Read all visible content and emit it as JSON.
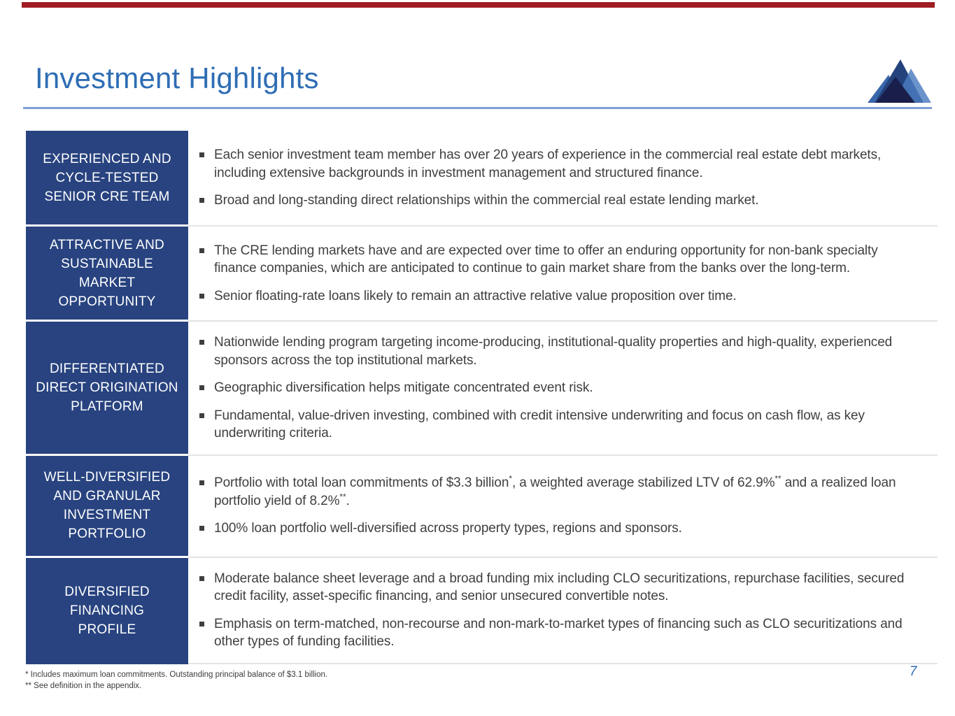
{
  "slide_title": "Investment Highlights",
  "page_number": "7",
  "logo_name": "blue-mountain-logo",
  "colors": {
    "accent_blue": "#2E6DB4",
    "rule_blue": "#7E9ED6",
    "label_box_blue": "#28437F",
    "top_bar_red": "#A01D23",
    "body_text": "#3F3F3F",
    "separator_gray": "#E4E4E4",
    "logo_main_peak": "#24427C",
    "logo_right_peak": "#4A7BC0",
    "logo_left_slope": "#3A67AC",
    "logo_dark_base": "#1A1E4A"
  },
  "table": {
    "rows": [
      {
        "label_lines": [
          "EXPERIENCED AND",
          "CYCLE-TESTED",
          "SENIOR CRE TEAM"
        ],
        "bullets": [
          "Each senior investment team member has over 20 years of experience in the commercial real estate debt markets, including extensive backgrounds in investment management and structured finance.",
          "Broad and long-standing direct relationships within the commercial real estate lending market."
        ]
      },
      {
        "label_lines": [
          "ATTRACTIVE AND",
          "SUSTAINABLE",
          "MARKET",
          "OPPORTUNITY"
        ],
        "bullets": [
          "The CRE lending markets have and are expected over time to offer an enduring opportunity for non-bank specialty finance companies, which are anticipated to continue to gain market share from the banks over the long-term.",
          "Senior floating-rate loans likely to remain an attractive relative value proposition over time."
        ]
      },
      {
        "label_lines": [
          "DIFFERENTIATED",
          "DIRECT ORIGINATION",
          "PLATFORM"
        ],
        "bullets": [
          "Nationwide lending program targeting income-producing, institutional-quality properties and high-quality, experienced sponsors across the top institutional markets.",
          "Geographic diversification helps mitigate concentrated event risk.",
          "Fundamental, value-driven investing, combined with credit intensive underwriting and focus on cash flow, as key underwriting criteria."
        ]
      },
      {
        "label_lines": [
          "WELL-DIVERSIFIED",
          "AND GRANULAR",
          "INVESTMENT",
          "PORTFOLIO"
        ],
        "bullets": [
          "Portfolio with total loan commitments of $3.3 billion*, a weighted average stabilized LTV of 62.9%** and a realized loan portfolio yield of 8.2%**.",
          "100% loan portfolio well-diversified across property types, regions and sponsors."
        ]
      },
      {
        "label_lines": [
          "DIVERSIFIED",
          "FINANCING",
          "PROFILE"
        ],
        "bullets": [
          "Moderate balance sheet leverage and a broad funding mix including CLO securitizations, repurchase facilities, secured credit facility, asset-specific financing, and senior unsecured convertible notes.",
          "Emphasis on term-matched, non-recourse and non-mark-to-market types of financing such as CLO securitizations and other types of funding facilities."
        ]
      }
    ]
  },
  "footnotes": [
    "* Includes maximum loan commitments. Outstanding principal balance of $3.1 billion.",
    "** See definition in the appendix."
  ]
}
